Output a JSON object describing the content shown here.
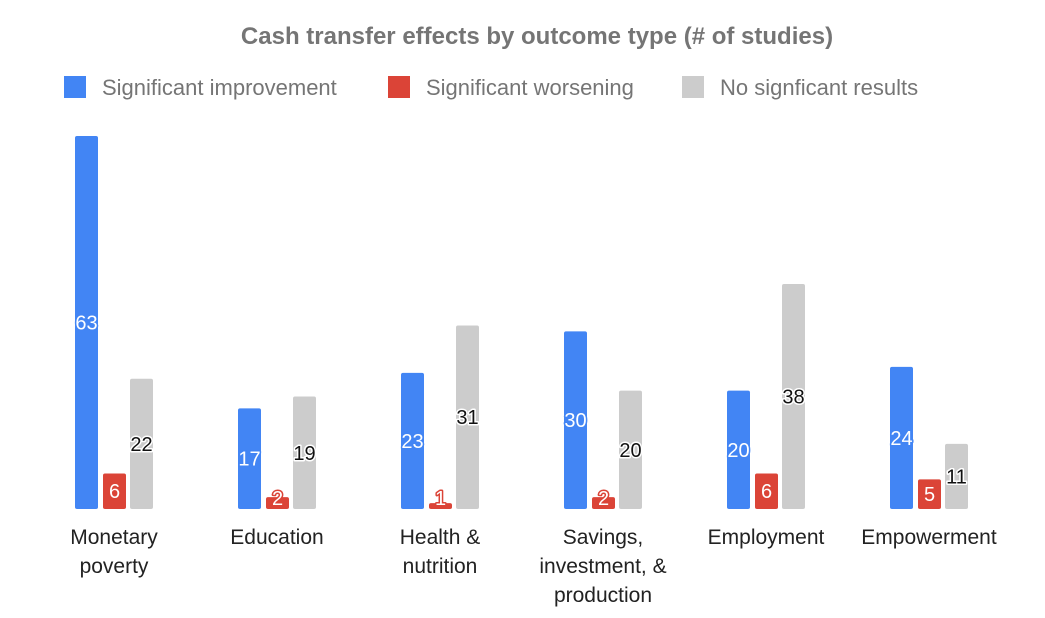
{
  "chart_data": {
    "type": "bar",
    "title": "Cash transfer effects by outcome type (# of studies)",
    "xlabel": "",
    "ylabel": "",
    "ylim": [
      0,
      63
    ],
    "grid": false,
    "legend_position": "top",
    "categories": [
      [
        "Monetary",
        "poverty"
      ],
      [
        "Education"
      ],
      [
        "Health &",
        "nutrition"
      ],
      [
        "Savings,",
        "investment, &",
        "production"
      ],
      [
        "Employment"
      ],
      [
        "Empowerment"
      ]
    ],
    "series": [
      {
        "name": "Significant improvement",
        "color": "#4285f4",
        "values": [
          63,
          17,
          23,
          30,
          20,
          24
        ]
      },
      {
        "name": "Significant worsening",
        "color": "#db4437",
        "values": [
          6,
          2,
          1,
          2,
          6,
          5
        ]
      },
      {
        "name": "No signficant results",
        "color": "#cccccc",
        "values": [
          22,
          19,
          31,
          20,
          38,
          11
        ]
      }
    ]
  }
}
